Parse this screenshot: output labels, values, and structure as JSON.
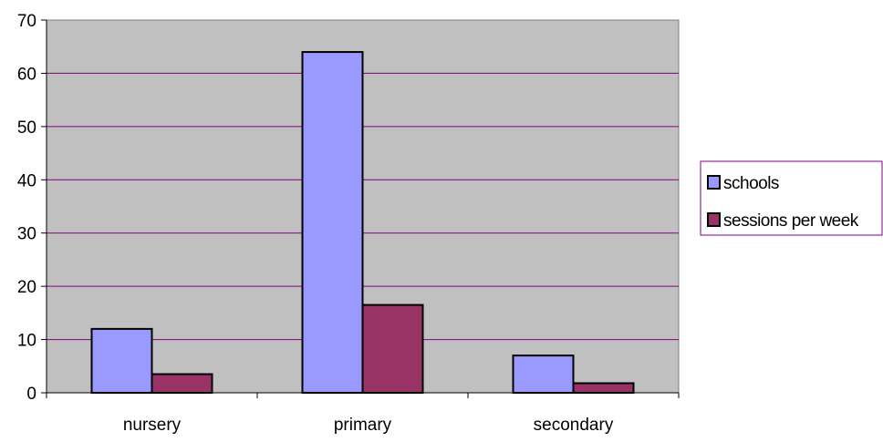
{
  "chart_data": {
    "type": "bar",
    "categories": [
      "nursery",
      "primary",
      "secondary"
    ],
    "series": [
      {
        "name": "schools",
        "values": [
          12,
          64,
          7
        ],
        "color": "#9999ff"
      },
      {
        "name": "sessions per week",
        "values": [
          3.5,
          16.5,
          1.8
        ],
        "color": "#993366"
      }
    ],
    "ylim": [
      0,
      70
    ],
    "yticks": [
      "0",
      "10",
      "20",
      "30",
      "40",
      "50",
      "60",
      "70"
    ],
    "grid": true,
    "legend_position": "right",
    "plot_background": "#c0c0c0",
    "gridline_color": "#800080"
  }
}
